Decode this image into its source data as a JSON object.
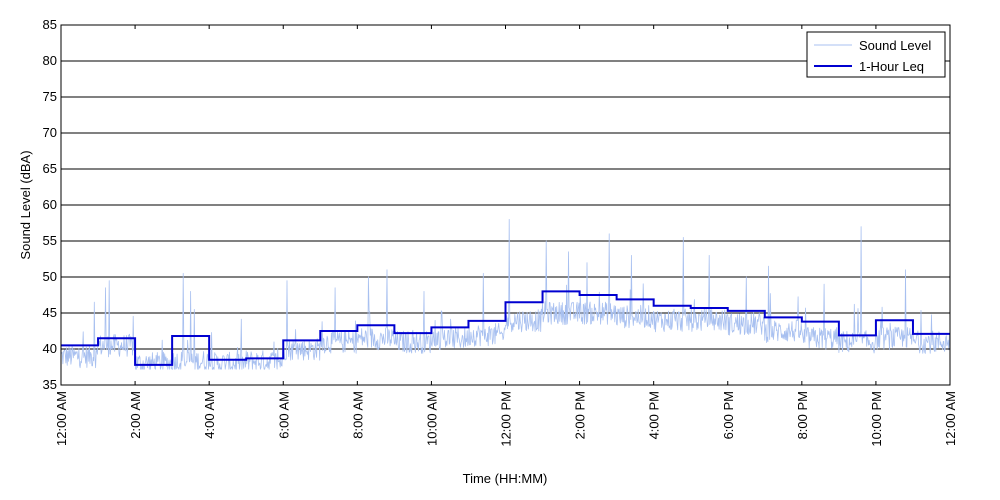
{
  "chart_data": {
    "type": "line",
    "xlabel": "Time (HH:MM)",
    "ylabel": "Sound Level (dBA)",
    "xlim": [
      0,
      24
    ],
    "ylim": [
      35,
      85
    ],
    "x_ticks": [
      0,
      2,
      4,
      6,
      8,
      10,
      12,
      14,
      16,
      18,
      20,
      22,
      24
    ],
    "x_tick_labels": [
      "12:00 AM",
      "2:00 AM",
      "4:00 AM",
      "6:00 AM",
      "8:00 AM",
      "10:00 AM",
      "12:00 PM",
      "2:00 PM",
      "4:00 PM",
      "6:00 PM",
      "8:00 PM",
      "10:00 PM",
      "12:00 AM"
    ],
    "y_ticks": [
      35,
      40,
      45,
      50,
      55,
      60,
      65,
      70,
      75,
      80,
      85
    ],
    "y_tick_labels": [
      "35",
      "40",
      "45",
      "50",
      "55",
      "60",
      "65",
      "70",
      "75",
      "80",
      "85"
    ],
    "grid": "horizontal",
    "legend_position": "top-right",
    "series": [
      {
        "name": "Sound Level",
        "color": "#a8c0f0",
        "hourly_baseline": [
          38.5,
          40.0,
          37.5,
          37.8,
          37.5,
          37.8,
          39.5,
          40.5,
          41.0,
          40.5,
          41.0,
          41.5,
          43.5,
          44.5,
          44.5,
          44.0,
          43.5,
          43.5,
          43.0,
          42.0,
          41.0,
          40.5,
          41.0,
          40.5
        ],
        "peaks": [
          [
            0.9,
            46.5
          ],
          [
            1.2,
            48.5
          ],
          [
            1.3,
            49.5
          ],
          [
            3.3,
            50.5
          ],
          [
            3.5,
            48.0
          ],
          [
            3.6,
            45.5
          ],
          [
            6.1,
            49.5
          ],
          [
            7.4,
            48.5
          ],
          [
            8.3,
            50.0
          ],
          [
            8.8,
            51.0
          ],
          [
            9.8,
            48.0
          ],
          [
            11.4,
            50.5
          ],
          [
            12.1,
            58.0
          ],
          [
            13.1,
            55.0
          ],
          [
            13.7,
            53.5
          ],
          [
            14.2,
            52.0
          ],
          [
            14.8,
            56.0
          ],
          [
            15.4,
            53.0
          ],
          [
            16.8,
            55.5
          ],
          [
            17.5,
            53.0
          ],
          [
            18.5,
            50.0
          ],
          [
            19.1,
            51.5
          ],
          [
            20.6,
            49.0
          ],
          [
            21.6,
            57.0
          ],
          [
            22.8,
            51.0
          ]
        ]
      },
      {
        "name": "1-Hour Leq",
        "color": "#0000d0",
        "x": [
          0,
          1,
          2,
          3,
          4,
          5,
          6,
          7,
          8,
          9,
          10,
          11,
          12,
          13,
          14,
          15,
          16,
          17,
          18,
          19,
          20,
          21,
          22,
          23,
          24
        ],
        "values": [
          40.5,
          41.5,
          37.8,
          41.8,
          38.5,
          38.7,
          41.2,
          42.5,
          43.3,
          42.2,
          43.0,
          43.9,
          46.5,
          48.0,
          47.5,
          46.9,
          46.0,
          45.7,
          45.3,
          44.4,
          43.8,
          41.9,
          44.0,
          42.1,
          42.1
        ]
      }
    ]
  }
}
